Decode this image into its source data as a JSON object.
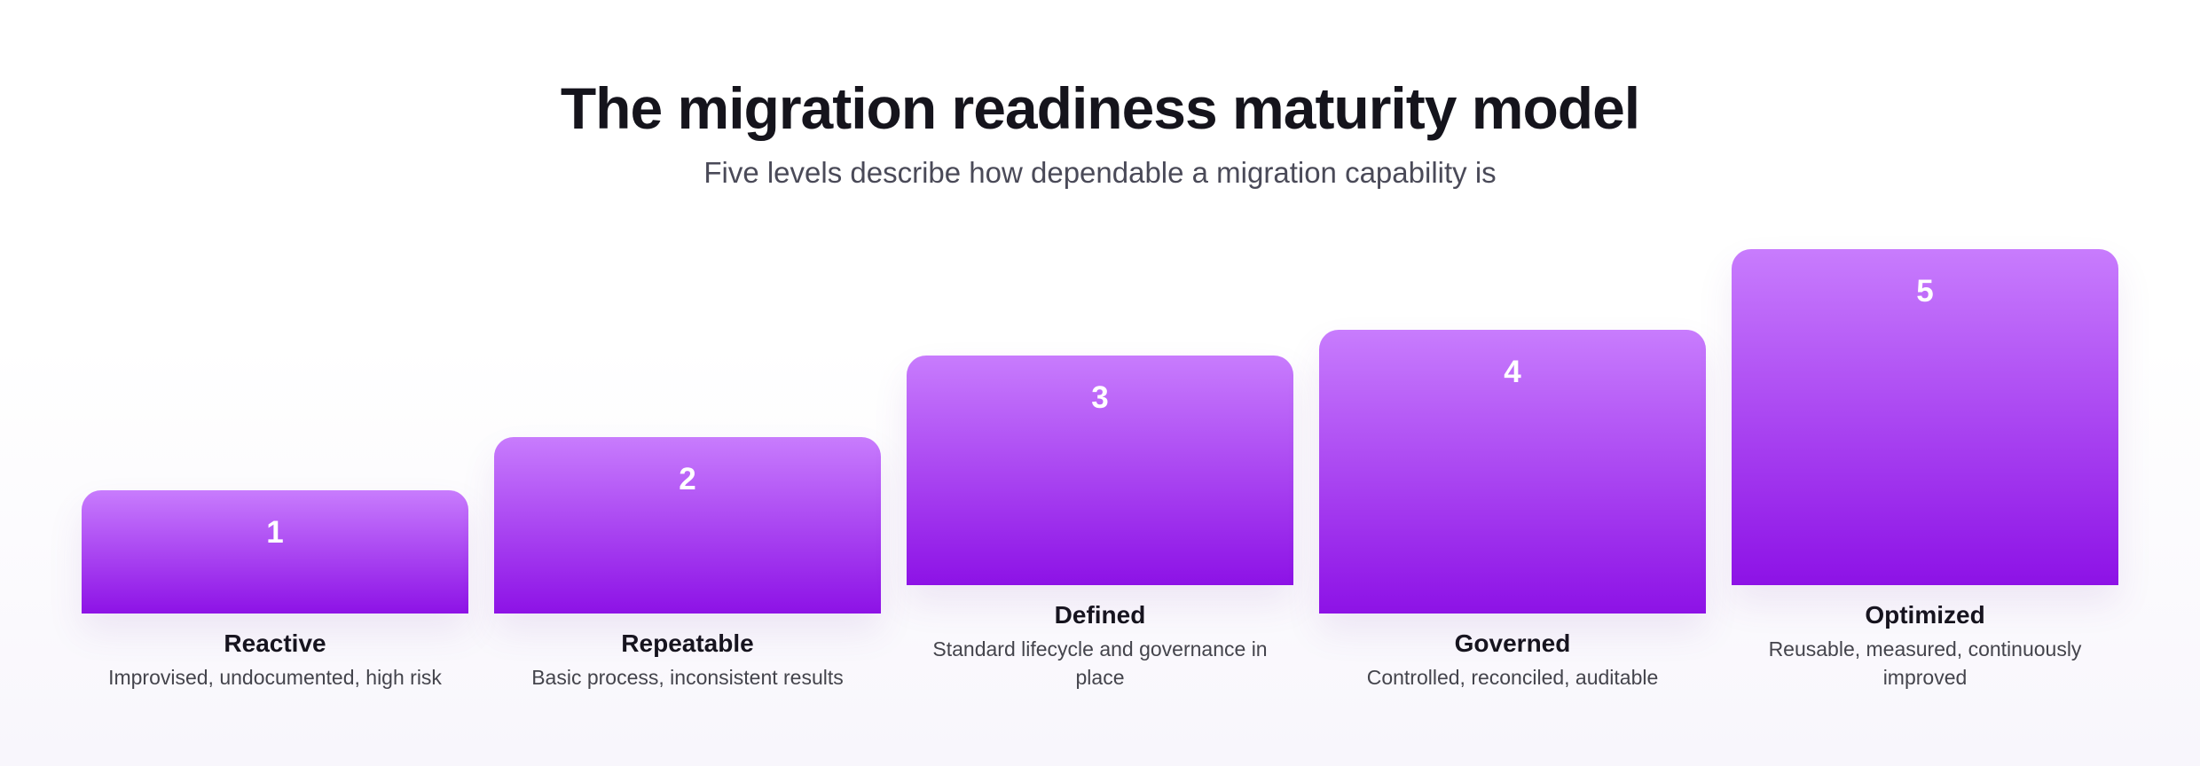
{
  "header": {
    "title": "The migration readiness maturity model",
    "subtitle": "Five levels describe how dependable a migration capability is"
  },
  "levels": [
    {
      "number": "1",
      "name": "Reactive",
      "description": "Improvised, undocumented, high risk"
    },
    {
      "number": "2",
      "name": "Repeatable",
      "description": "Basic process, inconsistent results"
    },
    {
      "number": "3",
      "name": "Defined",
      "description": "Standard lifecycle and governance in place"
    },
    {
      "number": "4",
      "name": "Governed",
      "description": "Controlled, reconciled, auditable"
    },
    {
      "number": "5",
      "name": "Optimized",
      "description": "Reusable, measured, continuously improved"
    }
  ]
}
